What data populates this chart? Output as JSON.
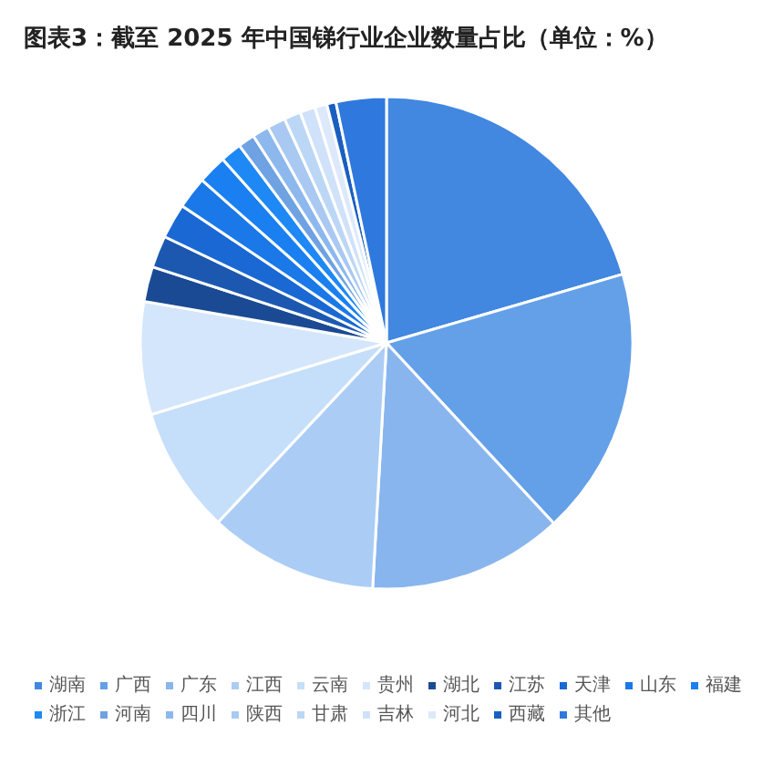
{
  "chart_data": {
    "type": "pie",
    "title": "图表3：截至 2025 年中国锑行业企业数量占比（单位：%）",
    "categories": [
      "湖南",
      "广西",
      "广东",
      "江西",
      "云南",
      "贵州",
      "湖北",
      "江苏",
      "天津",
      "山东",
      "福建",
      "浙江",
      "河南",
      "四川",
      "陕西",
      "甘肃",
      "吉林",
      "河北",
      "西藏",
      "其他"
    ],
    "values": [
      20.5,
      17.6,
      12.8,
      11.1,
      8.3,
      7.4,
      2.3,
      2.1,
      2.3,
      2.1,
      1.9,
      1.4,
      1.1,
      1.1,
      1.2,
      1.1,
      1.0,
      0.8,
      0.6,
      3.3
    ],
    "colors": [
      "#4287e0",
      "#64a0e8",
      "#89b5ee",
      "#abcdf5",
      "#c5dffa",
      "#d4e6fb",
      "#1a4a94",
      "#1c58b0",
      "#1a68d4",
      "#1a78e8",
      "#1a7ff0",
      "#1e88f5",
      "#6ea2e3",
      "#8db8ee",
      "#a9c9f2",
      "#bcd7f6",
      "#cfe2f9",
      "#dde9fb",
      "#1a5fc0",
      "#2f78de"
    ],
    "legend": "bottom"
  }
}
